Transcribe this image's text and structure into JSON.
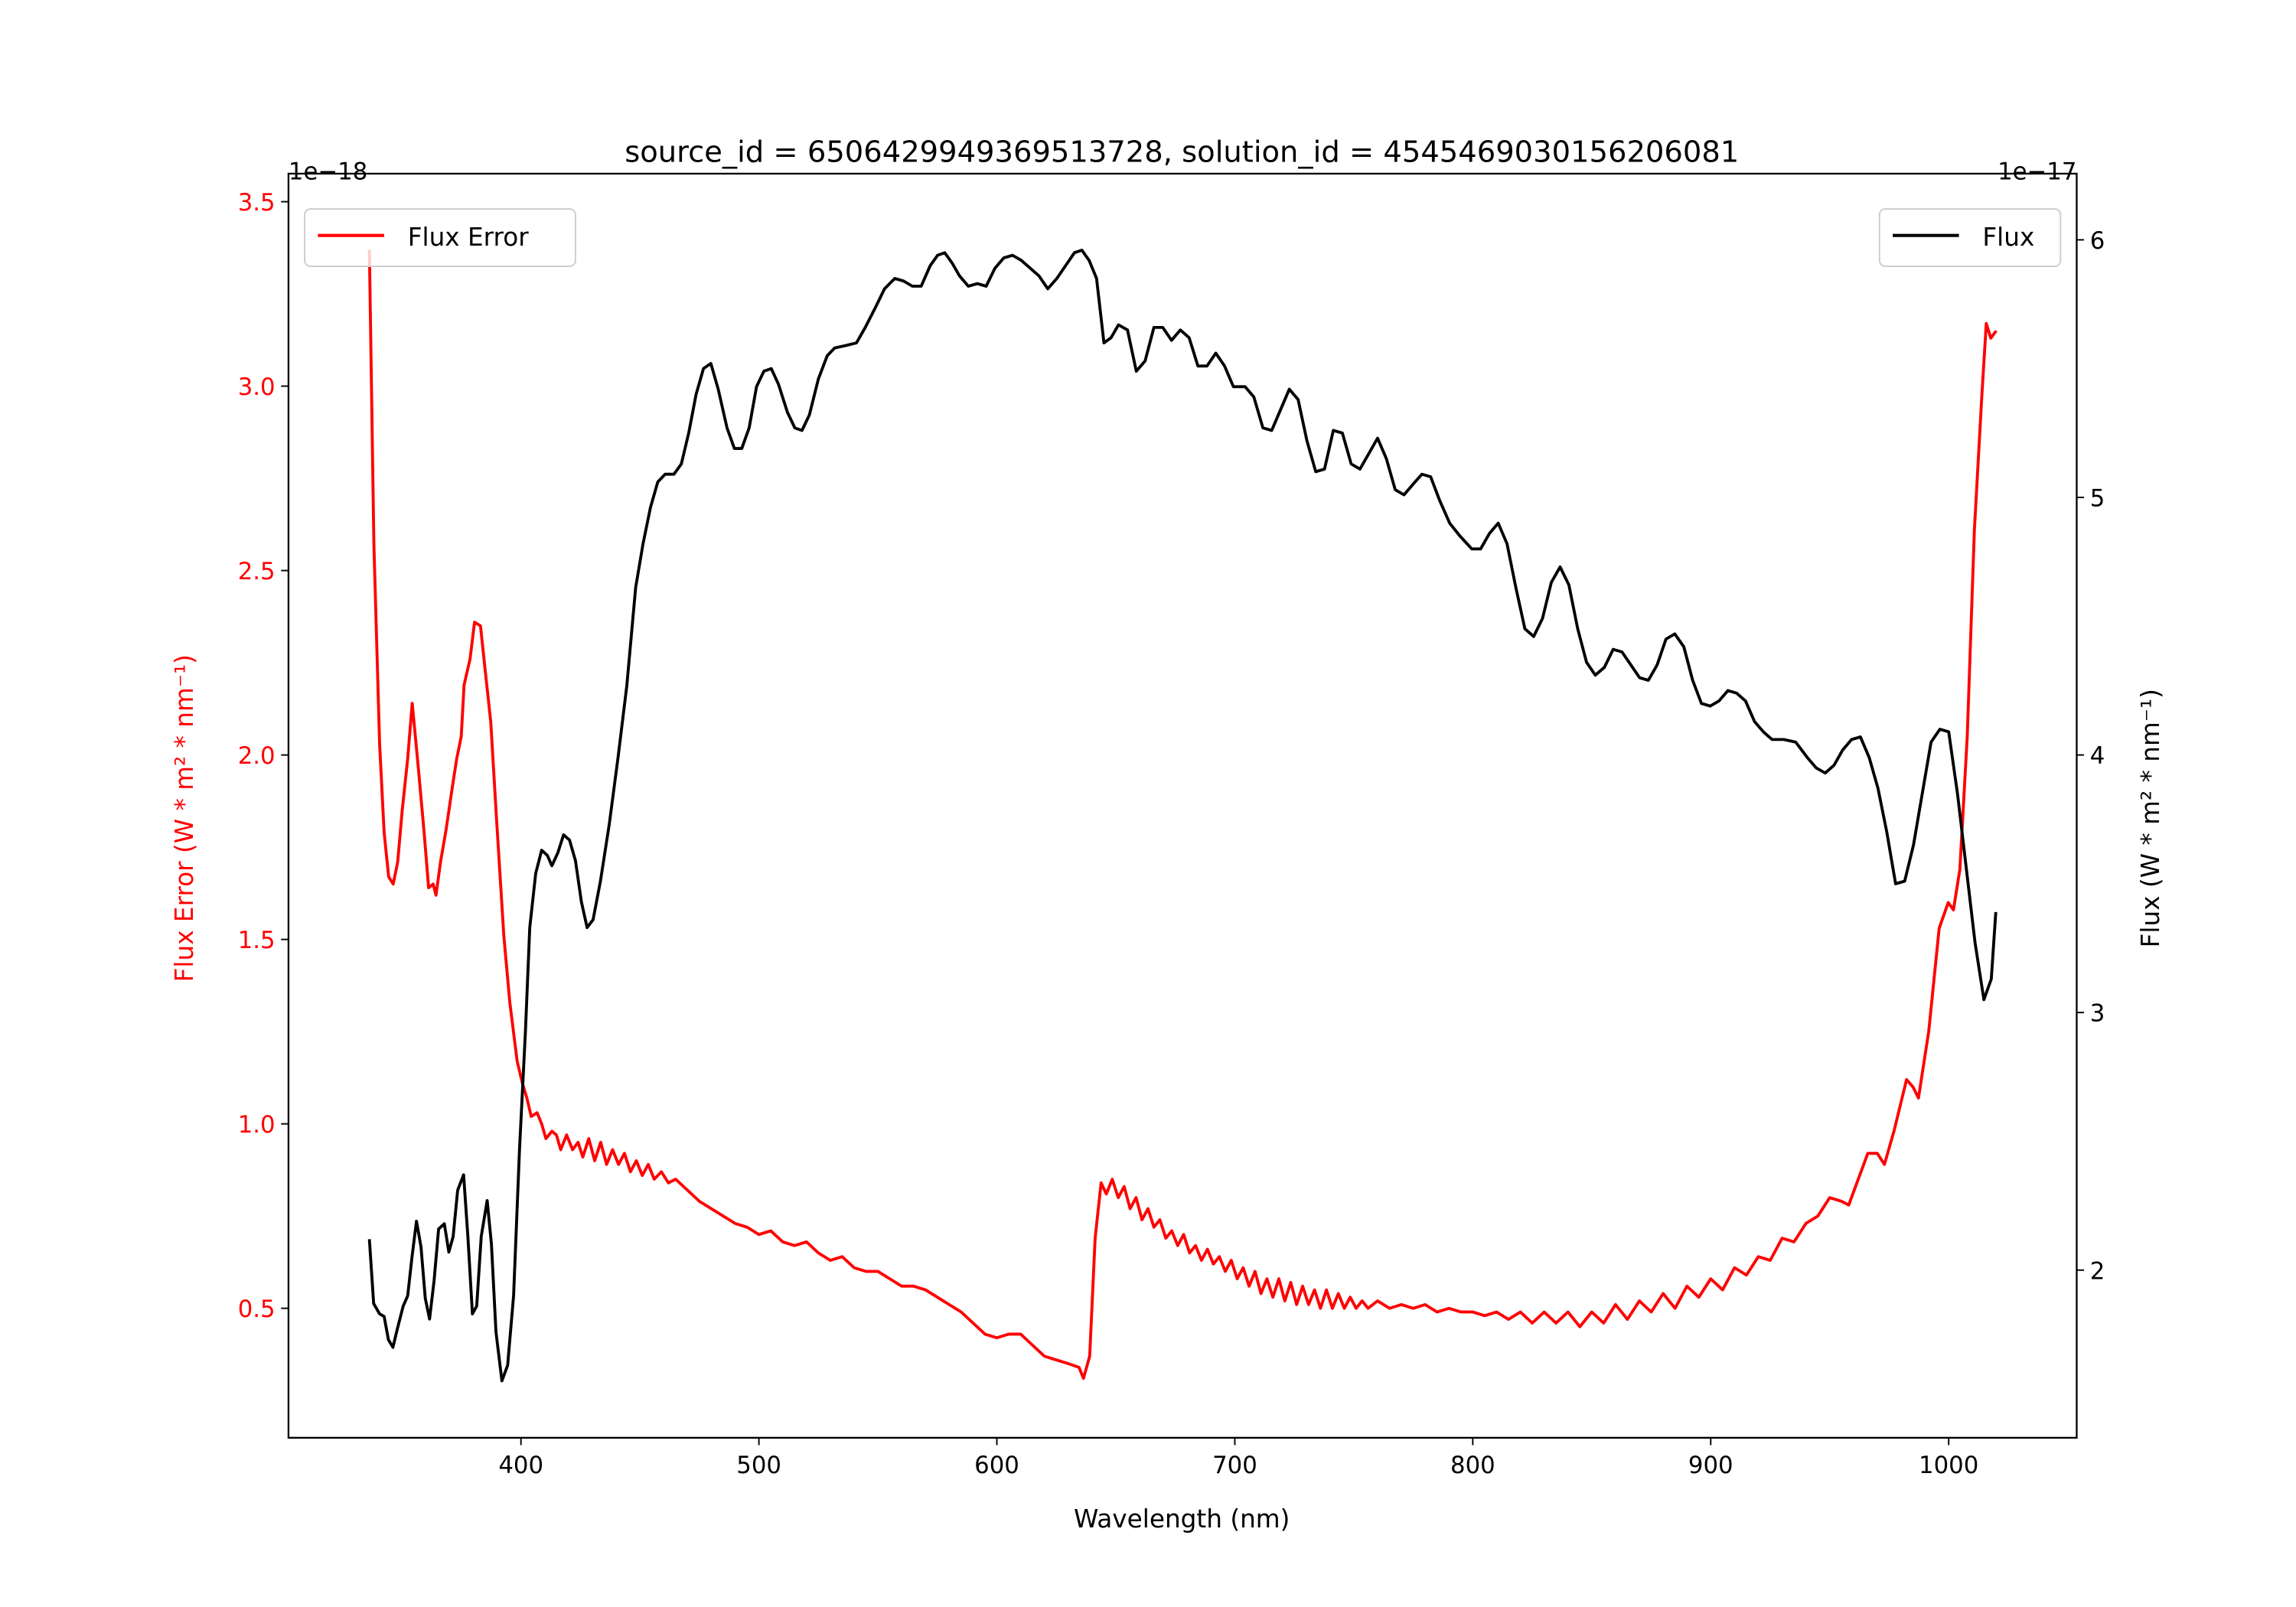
{
  "chart_data": {
    "type": "line",
    "title": "source_id = 6506429949369513728, solution_id = 4545469030156206081",
    "xlabel": "Wavelength (nm)",
    "ylabel_left": "Flux Error (W * m² * nm⁻¹)",
    "ylabel_right": "Flux (W * m² * nm⁻¹)",
    "left_offset_label": "1e−18",
    "right_offset_label": "1e−17",
    "xlim": [
      302.3,
      1053.8
    ],
    "ylim_left": [
      0.149,
      3.576
    ],
    "ylim_right": [
      1.349,
      6.257
    ],
    "x_ticks": [
      400,
      500,
      600,
      700,
      800,
      900,
      1000
    ],
    "x_tick_labels": [
      "400",
      "500",
      "600",
      "700",
      "800",
      "900",
      "1000"
    ],
    "y_left_ticks": [
      0.5,
      1.0,
      1.5,
      2.0,
      2.5,
      3.0,
      3.5
    ],
    "y_left_tick_labels": [
      "0.5",
      "1.0",
      "1.5",
      "2.0",
      "2.5",
      "3.0",
      "3.5"
    ],
    "y_right_ticks": [
      2,
      3,
      4,
      5,
      6
    ],
    "y_right_tick_labels": [
      "2",
      "3",
      "4",
      "5",
      "6"
    ],
    "grid": false,
    "series": [
      {
        "name": "Flux Error",
        "axis": "left",
        "color": "#ff0000",
        "legend": "top-left",
        "x": [
          336.3,
          338.2,
          340.6,
          342.5,
          344.4,
          346.3,
          348.2,
          350.1,
          352.4,
          354.3,
          356.8,
          359.3,
          361.2,
          363.1,
          364.3,
          366.2,
          368.6,
          371.1,
          373,
          374.9,
          376.1,
          378.6,
          380.5,
          383,
          384.8,
          387.3,
          389.7,
          392.8,
          395.3,
          398.4,
          400.6,
          402.5,
          404.3,
          406.8,
          408.7,
          410.5,
          413,
          414.9,
          416.7,
          419.2,
          421.7,
          424,
          426,
          428.5,
          431,
          433.5,
          436,
          438.5,
          441,
          443.5,
          446,
          448.5,
          451,
          453.5,
          456,
          459,
          462,
          465,
          470,
          475,
          480,
          485,
          490,
          495,
          500,
          505,
          510,
          515,
          520,
          525,
          530,
          535,
          540,
          545,
          550,
          555,
          560,
          565,
          570,
          575,
          580,
          585,
          590,
          595,
          600,
          605,
          610,
          615,
          620,
          625,
          630,
          634.5,
          636.4,
          639,
          641.3,
          643.8,
          646,
          648.5,
          651,
          653.5,
          656,
          658.5,
          661,
          663.5,
          666,
          668.5,
          671,
          673.5,
          676,
          678.5,
          681,
          683.5,
          686,
          688.5,
          691,
          693.5,
          696,
          698.5,
          701,
          703.5,
          706,
          708.5,
          711,
          713.5,
          716,
          718.5,
          721,
          723.5,
          726,
          728.5,
          731,
          733.5,
          736,
          738.5,
          741,
          743.5,
          746,
          748.5,
          751,
          753.5,
          756,
          760,
          765,
          770,
          775,
          780,
          785,
          790,
          795,
          800,
          805,
          810,
          815,
          820,
          825,
          830,
          835,
          840,
          845,
          850,
          855,
          860,
          865,
          870,
          875,
          880,
          885,
          890,
          895,
          900,
          905,
          910,
          915,
          920,
          925,
          930,
          935,
          940,
          945,
          950,
          955,
          958,
          962,
          966,
          970,
          973,
          977,
          982.3,
          985,
          987.3,
          991.6,
          996,
          999.8,
          1002,
          1004.7,
          1007.8,
          1010.8,
          1013.9,
          1015.8,
          1017.7,
          1020
        ],
        "y": [
          3.37,
          2.57,
          2.03,
          1.79,
          1.67,
          1.65,
          1.71,
          1.85,
          1.99,
          2.14,
          1.97,
          1.79,
          1.64,
          1.65,
          1.62,
          1.71,
          1.8,
          1.91,
          1.99,
          2.05,
          2.19,
          2.26,
          2.36,
          2.35,
          2.24,
          2.09,
          1.83,
          1.51,
          1.33,
          1.17,
          1.11,
          1.07,
          1.02,
          1.03,
          1.0,
          0.96,
          0.98,
          0.97,
          0.93,
          0.97,
          0.93,
          0.95,
          0.91,
          0.96,
          0.9,
          0.95,
          0.89,
          0.93,
          0.89,
          0.92,
          0.87,
          0.9,
          0.86,
          0.89,
          0.85,
          0.87,
          0.84,
          0.85,
          0.82,
          0.79,
          0.77,
          0.75,
          0.73,
          0.72,
          0.7,
          0.71,
          0.68,
          0.67,
          0.68,
          0.65,
          0.63,
          0.64,
          0.61,
          0.6,
          0.6,
          0.58,
          0.56,
          0.56,
          0.55,
          0.53,
          0.51,
          0.49,
          0.46,
          0.43,
          0.42,
          0.43,
          0.43,
          0.4,
          0.37,
          0.36,
          0.35,
          0.34,
          0.31,
          0.37,
          0.69,
          0.84,
          0.81,
          0.85,
          0.8,
          0.83,
          0.77,
          0.8,
          0.74,
          0.77,
          0.72,
          0.74,
          0.69,
          0.71,
          0.67,
          0.7,
          0.65,
          0.67,
          0.63,
          0.66,
          0.62,
          0.64,
          0.6,
          0.63,
          0.58,
          0.61,
          0.56,
          0.6,
          0.54,
          0.58,
          0.53,
          0.58,
          0.52,
          0.57,
          0.51,
          0.56,
          0.51,
          0.55,
          0.5,
          0.55,
          0.5,
          0.54,
          0.5,
          0.53,
          0.5,
          0.52,
          0.5,
          0.52,
          0.5,
          0.51,
          0.5,
          0.51,
          0.49,
          0.5,
          0.49,
          0.49,
          0.48,
          0.49,
          0.47,
          0.49,
          0.46,
          0.49,
          0.46,
          0.49,
          0.45,
          0.49,
          0.46,
          0.51,
          0.47,
          0.52,
          0.49,
          0.54,
          0.5,
          0.56,
          0.53,
          0.58,
          0.55,
          0.61,
          0.59,
          0.64,
          0.63,
          0.69,
          0.68,
          0.73,
          0.75,
          0.8,
          0.79,
          0.78,
          0.85,
          0.92,
          0.92,
          0.89,
          0.98,
          1.12,
          1.1,
          1.07,
          1.25,
          1.53,
          1.6,
          1.58,
          1.69,
          2.05,
          2.61,
          2.97,
          3.17,
          3.13,
          3.15
        ]
      },
      {
        "name": "Flux",
        "axis": "right",
        "color": "#000000",
        "legend": "top-right",
        "x": [
          336.3,
          338.1,
          340.6,
          342.5,
          344.3,
          346.2,
          348.0,
          350.5,
          352.4,
          354.2,
          356.1,
          358.0,
          359.8,
          361.6,
          363.5,
          365.4,
          367.8,
          369.7,
          371.5,
          373.4,
          375.9,
          377.7,
          379.6,
          381.4,
          383.3,
          385.8,
          387.6,
          389.5,
          392.0,
          394.4,
          396.9,
          399.4,
          401.9,
          403.7,
          406.2,
          408.7,
          411.1,
          413.0,
          415.5,
          417.9,
          420.4,
          422.9,
          425.4,
          427.8,
          430.3,
          433.4,
          437.1,
          440.8,
          444.5,
          448.2,
          451.3,
          454.4,
          457.5,
          460.6,
          464.3,
          467.4,
          470.5,
          473.6,
          476.7,
          479.8,
          482.9,
          486.6,
          489.7,
          492.8,
          495.9,
          499.0,
          502.1,
          505.2,
          508.2,
          512.0,
          515.1,
          518.1,
          521.2,
          525.0,
          528.7,
          531.8,
          536.7,
          541.0,
          544.7,
          549.1,
          552.8,
          557.1,
          560.8,
          564.5,
          568.2,
          572.0,
          575.1,
          578.1,
          581.2,
          584.3,
          588.0,
          591.8,
          595.5,
          599.2,
          602.9,
          606.6,
          610.3,
          614.0,
          617.7,
          621.4,
          625.2,
          628.9,
          632.6,
          635.7,
          638.8,
          641.9,
          645.0,
          648.0,
          651.1,
          654.9,
          658.6,
          662.3,
          666.0,
          669.7,
          673.4,
          677.1,
          680.8,
          684.5,
          688.3,
          692.0,
          695.7,
          699.4,
          704.3,
          708.0,
          711.8,
          715.5,
          719.2,
          722.9,
          726.6,
          730.3,
          734.0,
          737.7,
          741.4,
          745.2,
          748.9,
          752.6,
          756.3,
          760.0,
          763.7,
          767.4,
          771.1,
          774.8,
          778.6,
          782.3,
          786.0,
          790.3,
          794.6,
          799.6,
          803.3,
          807.0,
          810.7,
          814.4,
          818.1,
          821.9,
          825.6,
          829.3,
          833.0,
          836.7,
          840.4,
          844.1,
          847.8,
          851.5,
          855.3,
          859.0,
          862.7,
          866.4,
          870.1,
          873.8,
          877.5,
          881.2,
          884.9,
          888.7,
          892.4,
          896.1,
          899.8,
          903.5,
          907.2,
          910.9,
          914.6,
          918.4,
          922.1,
          925.8,
          930.7,
          935.7,
          940.6,
          944.3,
          948.1,
          951.8,
          955.5,
          959.2,
          962.9,
          966.6,
          970.3,
          974.0,
          977.7,
          981.5,
          985.2,
          988.9,
          992.6,
          996.3,
          1000.0,
          1003.7,
          1007.4,
          1011.1,
          1014.8,
          1017.9,
          1019.8
        ],
        "y": [
          2.12,
          1.87,
          1.83,
          1.82,
          1.73,
          1.7,
          1.77,
          1.86,
          1.9,
          2.05,
          2.19,
          2.09,
          1.89,
          1.81,
          1.96,
          2.16,
          2.18,
          2.07,
          2.13,
          2.31,
          2.37,
          2.13,
          1.83,
          1.86,
          2.13,
          2.27,
          2.1,
          1.76,
          1.57,
          1.63,
          1.9,
          2.47,
          2.93,
          3.33,
          3.54,
          3.63,
          3.61,
          3.57,
          3.62,
          3.69,
          3.67,
          3.59,
          3.43,
          3.33,
          3.36,
          3.51,
          3.73,
          3.99,
          4.27,
          4.65,
          4.82,
          4.96,
          5.06,
          5.09,
          5.09,
          5.13,
          5.25,
          5.4,
          5.5,
          5.52,
          5.42,
          5.27,
          5.19,
          5.19,
          5.27,
          5.43,
          5.49,
          5.5,
          5.44,
          5.33,
          5.27,
          5.26,
          5.32,
          5.46,
          5.55,
          5.58,
          5.59,
          5.6,
          5.66,
          5.74,
          5.81,
          5.85,
          5.84,
          5.82,
          5.82,
          5.9,
          5.94,
          5.95,
          5.91,
          5.86,
          5.82,
          5.83,
          5.82,
          5.89,
          5.93,
          5.94,
          5.92,
          5.89,
          5.86,
          5.81,
          5.85,
          5.9,
          5.95,
          5.96,
          5.92,
          5.85,
          5.6,
          5.62,
          5.67,
          5.65,
          5.49,
          5.53,
          5.66,
          5.66,
          5.61,
          5.65,
          5.62,
          5.51,
          5.51,
          5.56,
          5.51,
          5.43,
          5.43,
          5.39,
          5.27,
          5.26,
          5.34,
          5.42,
          5.38,
          5.22,
          5.1,
          5.11,
          5.26,
          5.25,
          5.13,
          5.11,
          5.17,
          5.23,
          5.15,
          5.03,
          5.01,
          5.05,
          5.09,
          5.08,
          4.99,
          4.9,
          4.85,
          4.8,
          4.8,
          4.86,
          4.9,
          4.82,
          4.65,
          4.49,
          4.46,
          4.53,
          4.67,
          4.73,
          4.66,
          4.49,
          4.36,
          4.31,
          4.34,
          4.41,
          4.4,
          4.35,
          4.3,
          4.29,
          4.35,
          4.45,
          4.47,
          4.42,
          4.29,
          4.2,
          4.19,
          4.21,
          4.25,
          4.24,
          4.21,
          4.13,
          4.09,
          4.06,
          4.06,
          4.05,
          3.99,
          3.95,
          3.93,
          3.96,
          4.02,
          4.06,
          4.07,
          3.99,
          3.87,
          3.7,
          3.5,
          3.51,
          3.65,
          3.85,
          4.05,
          4.1,
          4.09,
          3.85,
          3.56,
          3.27,
          3.05,
          3.13,
          3.39
        ]
      }
    ]
  }
}
